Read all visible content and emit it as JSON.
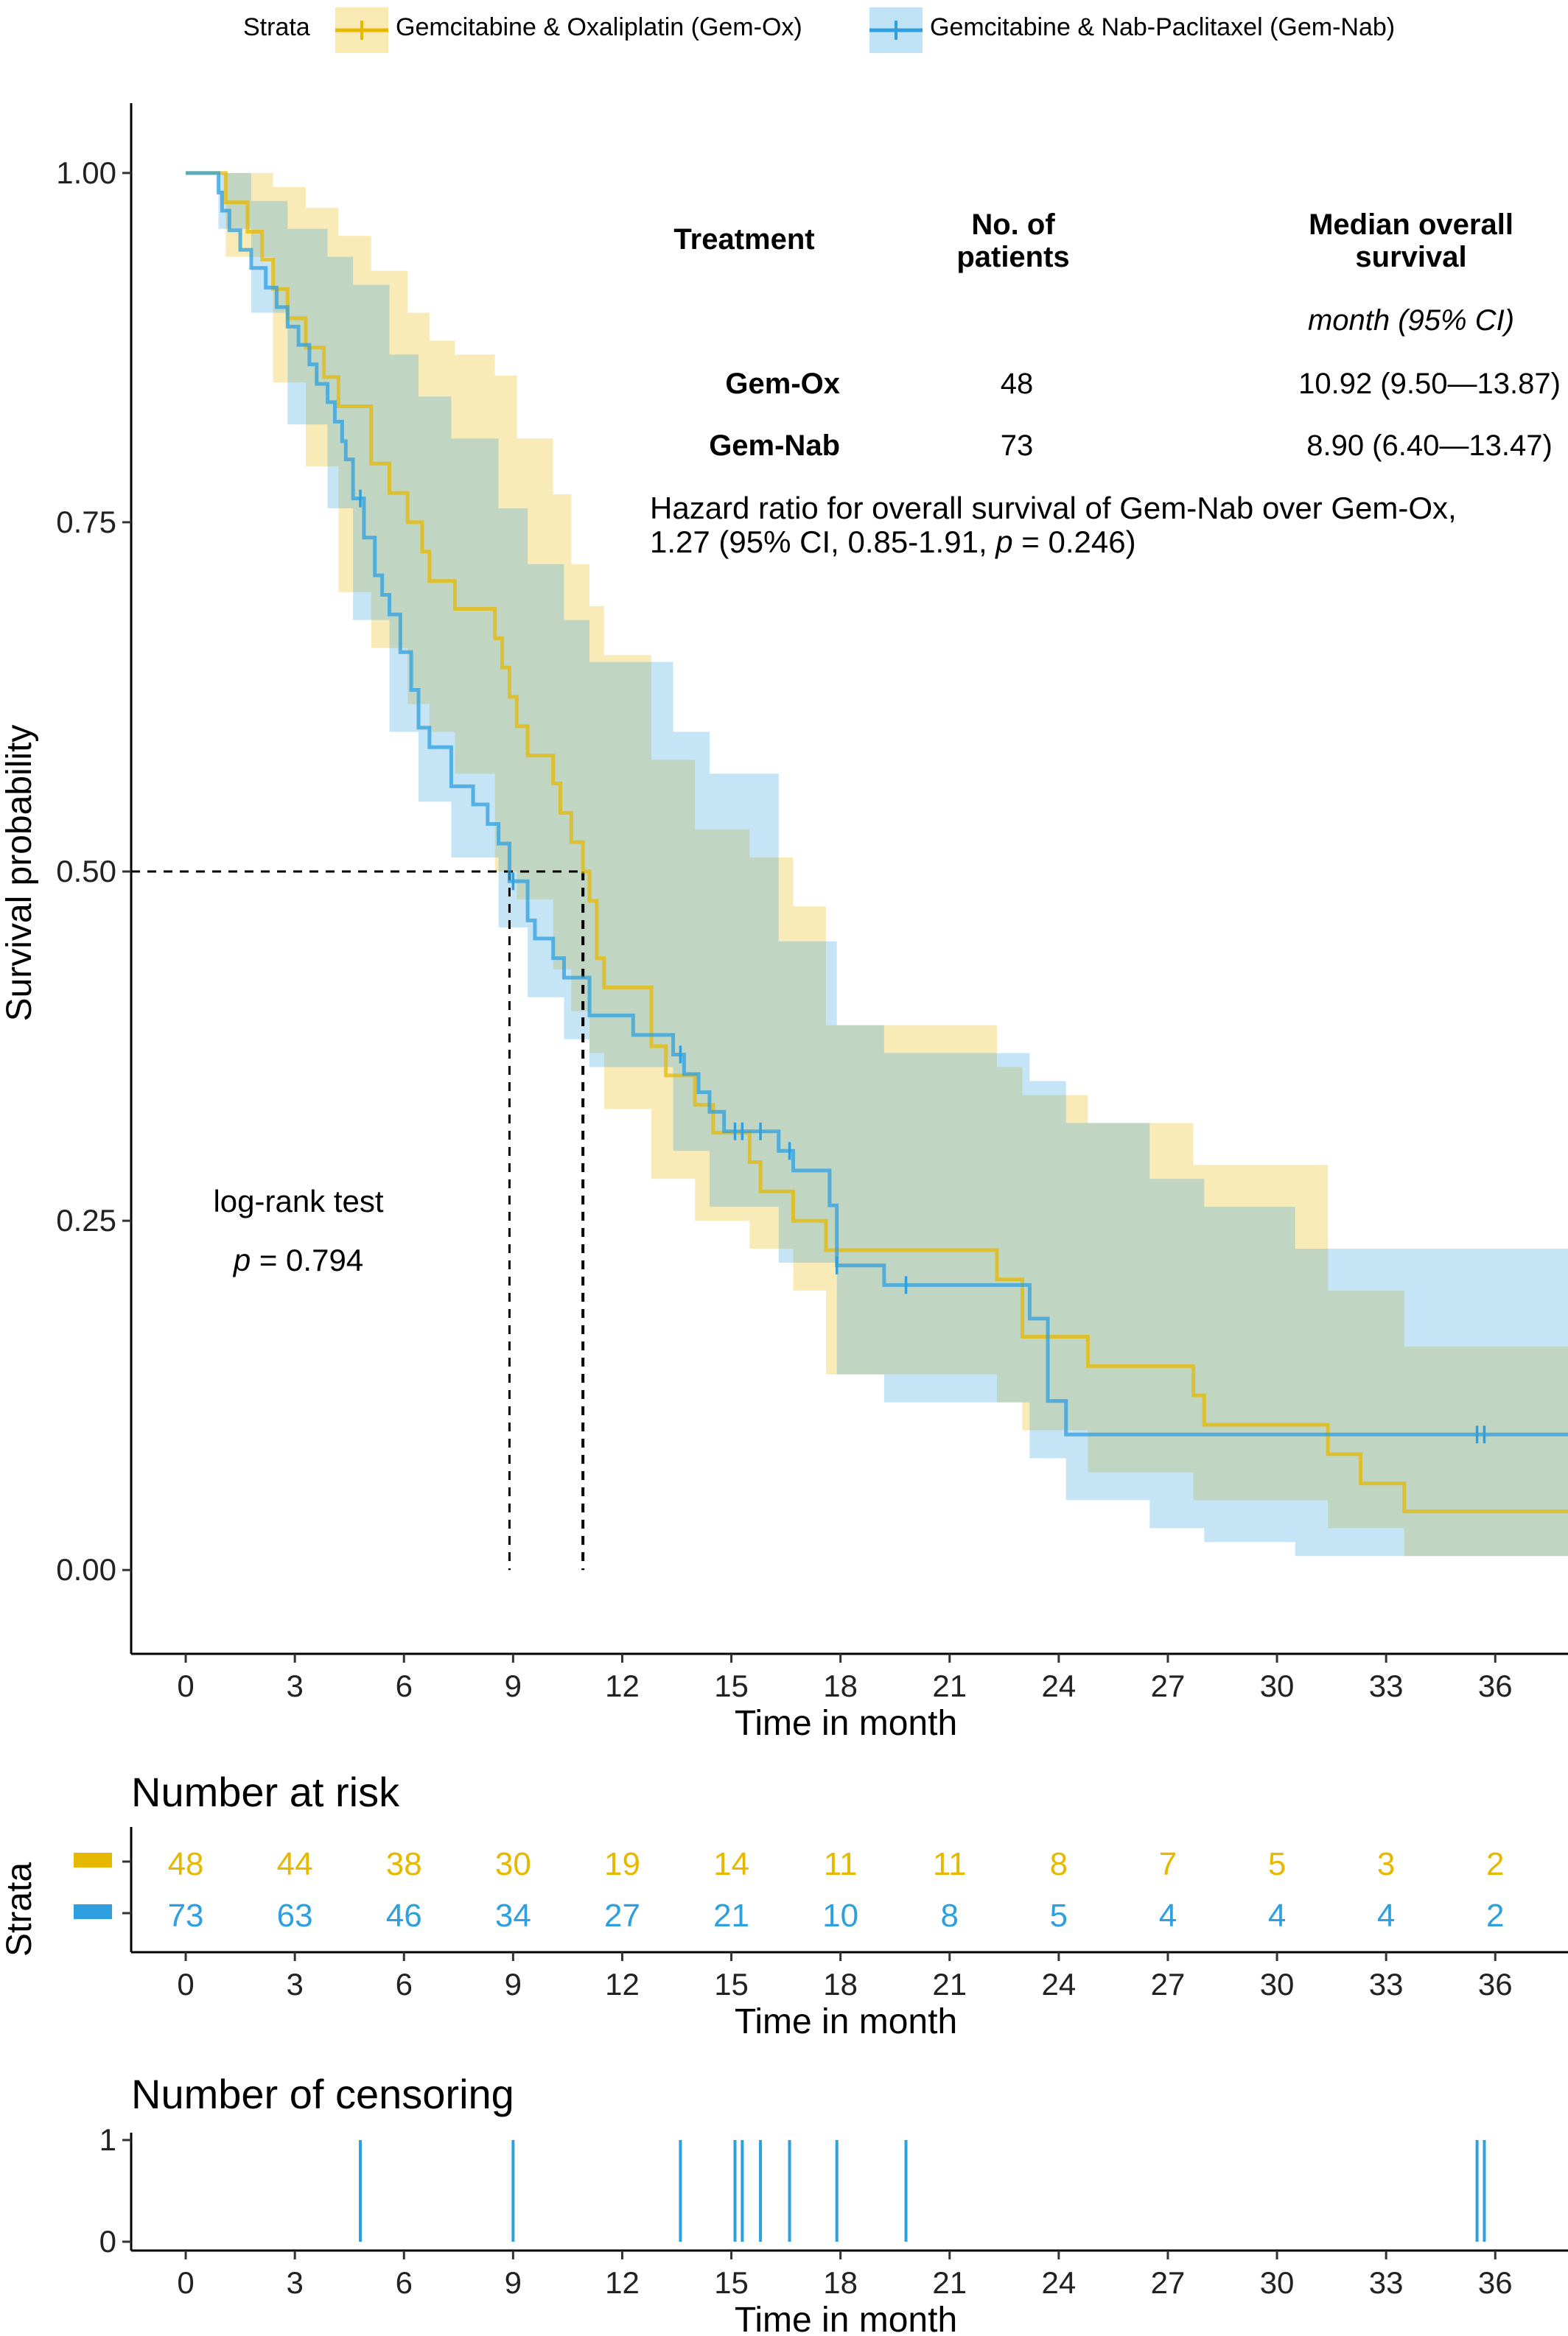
{
  "legend": {
    "title": "Strata",
    "items": [
      {
        "name": "Gemcitabine & Oxaliplatin (Gem-Ox)",
        "color": "#E7B800"
      },
      {
        "name": "Gemcitabine & Nab-Paclitaxel (Gem-Nab)",
        "color": "#2E9FDF"
      }
    ]
  },
  "table": {
    "head_treatment": "Treatment",
    "head_patients_1": "No. of",
    "head_patients_2": "patients",
    "head_median_1": "Median overall",
    "head_median_2": "survival",
    "subhead": "month (95% CI)",
    "rows": [
      {
        "treatment": "Gem-Ox",
        "patients": "48",
        "median": "10.92 (9.50—13.87)"
      },
      {
        "treatment": "Gem-Nab",
        "patients": "73",
        "median": "8.90 (6.40—13.47)"
      }
    ]
  },
  "hazard_note_1": "Hazard ratio for overall survival of Gem-Nab over Gem-Ox,",
  "hazard_note_2a": "1.27 (95% CI, 0.85-1.91, ",
  "hazard_note_2b": "p",
  "hazard_note_2c": " = 0.246)",
  "logrank_label": "log-rank test",
  "logrank_p_sym": "p",
  "logrank_p_val": " = 0.794",
  "risk_title": "Number at risk",
  "risk_ylabel": "Strata",
  "censor_title": "Number of censoring",
  "chart_data": [
    {
      "type": "line",
      "subtype": "kaplan-meier",
      "xlabel": "Time in month",
      "ylabel": "Survival probability",
      "xlim": [
        -1.5,
        38
      ],
      "ylim": [
        -0.06,
        1.05
      ],
      "x_ticks": [
        0,
        3,
        6,
        9,
        12,
        15,
        18,
        21,
        24,
        27,
        30,
        33,
        36
      ],
      "y_ticks": [
        0.0,
        0.25,
        0.5,
        0.75,
        1.0
      ],
      "y_tick_labels": [
        "0.00",
        "0.25",
        "0.50",
        "0.75",
        "1.00"
      ],
      "median_lines": [
        8.9,
        10.92
      ],
      "series": [
        {
          "name": "Gemcitabine & Oxaliplatin (Gem-Ox)",
          "color": "#E7B800",
          "steps": [
            [
              0,
              1.0
            ],
            [
              1.1,
              0.979
            ],
            [
              1.7,
              0.958
            ],
            [
              2.1,
              0.938
            ],
            [
              2.4,
              0.917
            ],
            [
              2.8,
              0.896
            ],
            [
              3.3,
              0.875
            ],
            [
              3.8,
              0.854
            ],
            [
              4.2,
              0.833
            ],
            [
              5.1,
              0.792
            ],
            [
              5.6,
              0.771
            ],
            [
              6.1,
              0.75
            ],
            [
              6.5,
              0.729
            ],
            [
              6.7,
              0.708
            ],
            [
              7.4,
              0.688
            ],
            [
              8.5,
              0.667
            ],
            [
              8.7,
              0.646
            ],
            [
              8.9,
              0.625
            ],
            [
              9.1,
              0.604
            ],
            [
              9.4,
              0.583
            ],
            [
              10.1,
              0.563
            ],
            [
              10.3,
              0.542
            ],
            [
              10.6,
              0.521
            ],
            [
              10.92,
              0.5
            ],
            [
              11.1,
              0.479
            ],
            [
              11.3,
              0.438
            ],
            [
              11.5,
              0.417
            ],
            [
              12.8,
              0.375
            ],
            [
              13.2,
              0.354
            ],
            [
              14.0,
              0.333
            ],
            [
              14.5,
              0.313
            ],
            [
              15.5,
              0.292
            ],
            [
              15.8,
              0.271
            ],
            [
              16.7,
              0.25
            ],
            [
              17.6,
              0.229
            ],
            [
              22.3,
              0.208
            ],
            [
              23.0,
              0.167
            ],
            [
              24.8,
              0.146
            ],
            [
              27.7,
              0.125
            ],
            [
              28.0,
              0.104
            ],
            [
              31.4,
              0.083
            ],
            [
              32.3,
              0.062
            ],
            [
              33.5,
              0.042
            ],
            [
              38,
              0.042
            ]
          ],
          "ci_upper": [
            [
              0,
              1.0
            ],
            [
              1.1,
              1.0
            ],
            [
              2.4,
              0.99
            ],
            [
              3.3,
              0.975
            ],
            [
              4.2,
              0.955
            ],
            [
              5.1,
              0.93
            ],
            [
              6.1,
              0.9
            ],
            [
              6.7,
              0.88
            ],
            [
              7.4,
              0.87
            ],
            [
              8.5,
              0.855
            ],
            [
              9.1,
              0.81
            ],
            [
              10.1,
              0.77
            ],
            [
              10.6,
              0.72
            ],
            [
              11.1,
              0.69
            ],
            [
              11.5,
              0.655
            ],
            [
              12.8,
              0.58
            ],
            [
              14.0,
              0.53
            ],
            [
              15.5,
              0.51
            ],
            [
              16.7,
              0.475
            ],
            [
              17.6,
              0.39
            ],
            [
              22.3,
              0.36
            ],
            [
              23.0,
              0.34
            ],
            [
              24.8,
              0.32
            ],
            [
              27.7,
              0.29
            ],
            [
              31.4,
              0.2
            ],
            [
              33.5,
              0.16
            ],
            [
              38,
              0.16
            ]
          ],
          "ci_lower": [
            [
              0,
              1.0
            ],
            [
              1.1,
              0.94
            ],
            [
              2.4,
              0.85
            ],
            [
              3.3,
              0.79
            ],
            [
              4.2,
              0.7
            ],
            [
              5.1,
              0.66
            ],
            [
              6.1,
              0.62
            ],
            [
              6.7,
              0.6
            ],
            [
              7.4,
              0.57
            ],
            [
              8.5,
              0.5
            ],
            [
              9.1,
              0.48
            ],
            [
              10.1,
              0.43
            ],
            [
              10.6,
              0.4
            ],
            [
              11.1,
              0.37
            ],
            [
              11.5,
              0.33
            ],
            [
              12.8,
              0.28
            ],
            [
              14.0,
              0.25
            ],
            [
              15.5,
              0.23
            ],
            [
              16.7,
              0.2
            ],
            [
              17.6,
              0.14
            ],
            [
              22.3,
              0.12
            ],
            [
              23.0,
              0.1
            ],
            [
              24.8,
              0.07
            ],
            [
              27.7,
              0.05
            ],
            [
              31.4,
              0.03
            ],
            [
              33.5,
              0.01
            ],
            [
              38,
              0.01
            ]
          ],
          "censor_times": []
        },
        {
          "name": "Gemcitabine & Nab-Paclitaxel (Gem-Nab)",
          "color": "#2E9FDF",
          "steps": [
            [
              0,
              1.0
            ],
            [
              0.9,
              0.986
            ],
            [
              1.0,
              0.973
            ],
            [
              1.2,
              0.959
            ],
            [
              1.5,
              0.945
            ],
            [
              1.8,
              0.932
            ],
            [
              2.2,
              0.918
            ],
            [
              2.5,
              0.904
            ],
            [
              2.8,
              0.89
            ],
            [
              3.1,
              0.877
            ],
            [
              3.4,
              0.863
            ],
            [
              3.6,
              0.849
            ],
            [
              3.9,
              0.836
            ],
            [
              4.1,
              0.822
            ],
            [
              4.3,
              0.808
            ],
            [
              4.4,
              0.795
            ],
            [
              4.6,
              0.767
            ],
            [
              4.9,
              0.739
            ],
            [
              5.2,
              0.712
            ],
            [
              5.4,
              0.698
            ],
            [
              5.6,
              0.684
            ],
            [
              5.9,
              0.657
            ],
            [
              6.2,
              0.63
            ],
            [
              6.4,
              0.603
            ],
            [
              6.7,
              0.589
            ],
            [
              7.3,
              0.561
            ],
            [
              7.9,
              0.548
            ],
            [
              8.3,
              0.534
            ],
            [
              8.6,
              0.52
            ],
            [
              8.9,
              0.493
            ],
            [
              9.4,
              0.465
            ],
            [
              9.6,
              0.452
            ],
            [
              10.1,
              0.438
            ],
            [
              10.4,
              0.424
            ],
            [
              11.1,
              0.397
            ],
            [
              12.3,
              0.383
            ],
            [
              13.4,
              0.369
            ],
            [
              13.7,
              0.355
            ],
            [
              14.1,
              0.342
            ],
            [
              14.4,
              0.328
            ],
            [
              14.8,
              0.314
            ],
            [
              16.3,
              0.3
            ],
            [
              16.7,
              0.286
            ],
            [
              17.7,
              0.261
            ],
            [
              17.9,
              0.218
            ],
            [
              19.2,
              0.204
            ],
            [
              23.2,
              0.18
            ],
            [
              23.7,
              0.121
            ],
            [
              24.2,
              0.097
            ],
            [
              38,
              0.097
            ]
          ],
          "ci_upper": [
            [
              0,
              1.0
            ],
            [
              0.9,
              1.0
            ],
            [
              1.8,
              0.98
            ],
            [
              2.8,
              0.96
            ],
            [
              3.9,
              0.94
            ],
            [
              4.6,
              0.92
            ],
            [
              5.6,
              0.87
            ],
            [
              6.4,
              0.84
            ],
            [
              7.3,
              0.81
            ],
            [
              8.6,
              0.76
            ],
            [
              9.4,
              0.72
            ],
            [
              10.4,
              0.68
            ],
            [
              11.1,
              0.65
            ],
            [
              13.4,
              0.6
            ],
            [
              14.4,
              0.57
            ],
            [
              16.3,
              0.45
            ],
            [
              17.9,
              0.39
            ],
            [
              19.2,
              0.37
            ],
            [
              23.2,
              0.35
            ],
            [
              24.2,
              0.32
            ],
            [
              26.5,
              0.28
            ],
            [
              28.0,
              0.26
            ],
            [
              30.5,
              0.23
            ],
            [
              38,
              0.23
            ]
          ],
          "ci_lower": [
            [
              0,
              1.0
            ],
            [
              0.9,
              0.96
            ],
            [
              1.8,
              0.9
            ],
            [
              2.8,
              0.82
            ],
            [
              3.9,
              0.76
            ],
            [
              4.6,
              0.68
            ],
            [
              5.6,
              0.6
            ],
            [
              6.4,
              0.55
            ],
            [
              7.3,
              0.51
            ],
            [
              8.6,
              0.46
            ],
            [
              9.4,
              0.41
            ],
            [
              10.4,
              0.38
            ],
            [
              11.1,
              0.36
            ],
            [
              13.4,
              0.3
            ],
            [
              14.4,
              0.26
            ],
            [
              16.3,
              0.22
            ],
            [
              17.9,
              0.14
            ],
            [
              19.2,
              0.12
            ],
            [
              23.2,
              0.08
            ],
            [
              24.2,
              0.05
            ],
            [
              26.5,
              0.03
            ],
            [
              28.0,
              0.02
            ],
            [
              30.5,
              0.01
            ],
            [
              38,
              0.01
            ]
          ],
          "censor_times": [
            4.8,
            9.0,
            13.6,
            15.1,
            15.3,
            15.8,
            16.6,
            17.9,
            19.8,
            35.5,
            35.7
          ]
        }
      ]
    },
    {
      "type": "table",
      "title": "Number at risk",
      "xlabel": "Time in month",
      "ylabel": "Strata",
      "times": [
        0,
        3,
        6,
        9,
        12,
        15,
        18,
        21,
        24,
        27,
        30,
        33,
        36
      ],
      "series": [
        {
          "name": "Gem-Ox",
          "color": "#E7B800",
          "values": [
            48,
            44,
            38,
            30,
            19,
            14,
            11,
            11,
            8,
            7,
            5,
            3,
            2
          ]
        },
        {
          "name": "Gem-Nab",
          "color": "#2E9FDF",
          "values": [
            73,
            63,
            46,
            34,
            27,
            21,
            10,
            8,
            5,
            4,
            4,
            4,
            2
          ]
        }
      ]
    },
    {
      "type": "bar",
      "title": "Number of censoring",
      "xlabel": "Time in month",
      "x_ticks": [
        0,
        3,
        6,
        9,
        12,
        15,
        18,
        21,
        24,
        27,
        30,
        33,
        36
      ],
      "y_ticks": [
        0,
        1
      ],
      "ylim": [
        0,
        1
      ],
      "series": [
        {
          "name": "Gem-Nab",
          "color": "#2E9FDF",
          "x": [
            4.8,
            9.0,
            13.6,
            15.1,
            15.3,
            15.8,
            16.6,
            17.9,
            19.8,
            35.5,
            35.7
          ],
          "values": [
            1,
            1,
            1,
            1,
            1,
            1,
            1,
            1,
            1,
            1,
            1
          ]
        }
      ]
    }
  ]
}
